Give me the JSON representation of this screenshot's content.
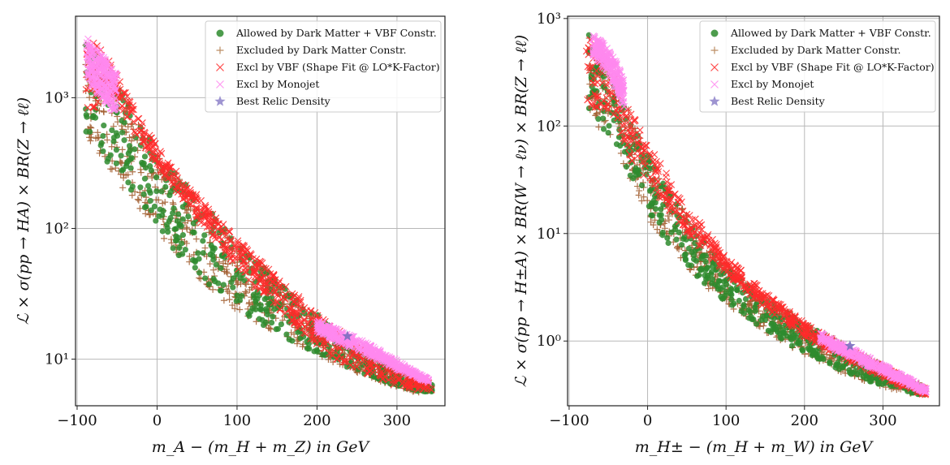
{
  "chart_data": [
    {
      "type": "scatter",
      "xlabel": "m_A − (m_H + m_Z) in GeV",
      "ylabel": "ℒ × σ(pp → HA) × BR(Z → ℓℓ)",
      "xlim": [
        -102,
        360
      ],
      "ylim": [
        4.4,
        4200
      ],
      "yscale": "log",
      "grid": true,
      "legend_position": "top-right",
      "x_ticks": [
        {
          "v": -100,
          "label": "−100"
        },
        {
          "v": 0,
          "label": "0"
        },
        {
          "v": 100,
          "label": "100"
        },
        {
          "v": 200,
          "label": "200"
        },
        {
          "v": 300,
          "label": "300"
        }
      ],
      "y_ticks": [
        {
          "v": 10,
          "label": "10¹"
        },
        {
          "v": 100,
          "label": "10²"
        },
        {
          "v": 1000,
          "label": "10³"
        }
      ],
      "legend": [
        {
          "label": "Allowed by Dark Matter + VBF Constr.",
          "marker": "circle",
          "color": "#2e8b2e"
        },
        {
          "label": "Excluded by Dark Matter Constr.",
          "marker": "plus",
          "color": "#b07a4a"
        },
        {
          "label": "Excl by VBF (Shape Fit @ LO*K-Factor)",
          "marker": "x",
          "color": "#ff2a2a"
        },
        {
          "label": "Excl by Monojet",
          "marker": "x",
          "color": "#ff88ee"
        },
        {
          "label": "Best Relic Density",
          "marker": "star",
          "color": "#9488cc"
        }
      ],
      "best_point": {
        "x": 238,
        "y": 15
      },
      "series": [
        {
          "name": "Excluded by Dark Matter Constr.",
          "marker": "plus",
          "color": "#a05a2c",
          "band": {
            "x": [
              -90,
              -70,
              -50,
              -25,
              0,
              25,
              50,
              75,
              100,
              125,
              150,
              175,
              200,
              225,
              250,
              275,
              300,
              325,
              345
            ],
            "lo": [
              480,
              350,
              230,
              150,
              98,
              62,
              42,
              30,
              23,
              19,
              16,
              13,
              11,
              9,
              7.8,
              6.8,
              6.1,
              5.5,
              5.4
            ],
            "hi": [
              3000,
              2000,
              1200,
              650,
              380,
              250,
              170,
              115,
              78,
              55,
              38,
              28,
              21,
              15,
              11.5,
              9.5,
              8.2,
              7.2,
              6.5
            ]
          }
        },
        {
          "name": "Allowed by Dark Matter + VBF Constr.",
          "marker": "circle",
          "color": "#2e8b2e",
          "band": {
            "x": [
              -90,
              -70,
              -50,
              -25,
              0,
              25,
              50,
              75,
              100,
              125,
              150,
              175,
              200,
              225,
              250,
              275,
              300,
              325,
              345
            ],
            "lo": [
              500,
              370,
              250,
              160,
              100,
              64,
              44,
              31,
              24,
              19,
              16,
              13,
              11,
              9.2,
              8,
              7,
              6.2,
              5.7,
              5.6
            ],
            "hi": [
              3200,
              2100,
              1300,
              700,
              400,
              260,
              175,
              118,
              80,
              56,
              40,
              29,
              22,
              16,
              12,
              9.8,
              8.4,
              7.3,
              6.4
            ]
          }
        },
        {
          "name": "Excl by VBF (Shape Fit @ LO*K-Factor)",
          "marker": "x",
          "color": "#ff2a2a",
          "band": {
            "x": [
              -90,
              -80,
              -70,
              -60,
              -50,
              -25,
              0,
              25,
              50,
              75,
              100,
              125,
              150,
              175,
              200,
              225,
              250,
              275,
              300,
              325,
              345
            ],
            "lo": [
              500,
              650,
              900,
              1000,
              900,
              500,
              300,
              190,
              120,
              80,
              50,
              34,
              24,
              17.5,
              13,
              10,
              8.3,
              7.2,
              6.3,
              5.8,
              5.8
            ],
            "hi": [
              2900,
              2700,
              2300,
              1900,
              1500,
              750,
              430,
              270,
              180,
              120,
              84,
              60,
              42,
              31,
              23,
              17,
              13,
              10.5,
              8.8,
              7.3,
              6.4
            ]
          }
        },
        {
          "name": "Excl by Monojet",
          "marker": "x",
          "color": "#ff88ee",
          "band": {
            "x": [
              -88,
              -80,
              -70,
              -60,
              -50,
              200,
              220,
              240,
              260,
              280,
              300,
              320,
              340
            ],
            "lo": [
              1400,
              1200,
              1000,
              850,
              700,
              16,
              14,
              12.5,
              11,
              9.5,
              8.3,
              7.4,
              6.6
            ],
            "hi": [
              2900,
              2600,
              2200,
              1800,
              1500,
              20,
              17.5,
              15.5,
              13.5,
              11.5,
              9.8,
              8.2,
              7
            ]
          }
        }
      ]
    },
    {
      "type": "scatter",
      "xlabel": "m_H± − (m_H + m_W) in GeV",
      "ylabel": "ℒ × σ(pp → H±A) × BR(W → ℓν) × BR(Z → ℓℓ)",
      "xlim": [
        -102,
        372
      ],
      "ylim": [
        0.25,
        1050
      ],
      "yscale": "log",
      "grid": true,
      "legend_position": "top-right",
      "x_ticks": [
        {
          "v": -100,
          "label": "−100"
        },
        {
          "v": 0,
          "label": "0"
        },
        {
          "v": 100,
          "label": "100"
        },
        {
          "v": 200,
          "label": "200"
        },
        {
          "v": 300,
          "label": "300"
        }
      ],
      "y_ticks": [
        {
          "v": 1,
          "label": "10⁰"
        },
        {
          "v": 10,
          "label": "10¹"
        },
        {
          "v": 100,
          "label": "10²"
        },
        {
          "v": 1000,
          "label": "10³"
        }
      ],
      "legend": [
        {
          "label": "Allowed by Dark Matter + VBF Constr.",
          "marker": "circle",
          "color": "#2e8b2e"
        },
        {
          "label": "Excluded by Dark Matter Constr.",
          "marker": "plus",
          "color": "#b07a4a"
        },
        {
          "label": "Excl by VBF (Shape Fit @ LO*K-Factor)",
          "marker": "x",
          "color": "#ff2a2a"
        },
        {
          "label": "Excl by Monojet",
          "marker": "x",
          "color": "#ff88ee"
        },
        {
          "label": "Best Relic Density",
          "marker": "star",
          "color": "#9488cc"
        }
      ],
      "best_point": {
        "x": 258,
        "y": 0.9
      },
      "series": [
        {
          "name": "Excluded by Dark Matter Constr.",
          "marker": "plus",
          "color": "#a05a2c",
          "band": {
            "x": [
              -75,
              -60,
              -40,
              -20,
              0,
              25,
              50,
              75,
              100,
              125,
              150,
              175,
              200,
              225,
              250,
              275,
              300,
              325,
              355
            ],
            "lo": [
              120,
              90,
              60,
              30,
              14,
              8,
              4.8,
              3.2,
              2.2,
              1.6,
              1.2,
              0.95,
              0.75,
              0.6,
              0.5,
              0.43,
              0.37,
              0.33,
              0.31
            ],
            "hi": [
              700,
              450,
              250,
              120,
              60,
              28,
              15,
              8.5,
              5.3,
              3.6,
              2.6,
              2,
              1.55,
              1.2,
              0.95,
              0.75,
              0.6,
              0.48,
              0.38
            ]
          }
        },
        {
          "name": "Allowed by Dark Matter + VBF Constr.",
          "marker": "circle",
          "color": "#2e8b2e",
          "band": {
            "x": [
              -75,
              -60,
              -40,
              -20,
              0,
              25,
              50,
              75,
              100,
              125,
              150,
              175,
              200,
              225,
              250,
              275,
              300,
              325,
              355
            ],
            "lo": [
              130,
              100,
              65,
              32,
              15,
              8.3,
              5,
              3.3,
              2.3,
              1.65,
              1.25,
              0.98,
              0.78,
              0.62,
              0.52,
              0.44,
              0.38,
              0.34,
              0.31
            ],
            "hi": [
              720,
              400,
              220,
              110,
              55,
              26,
              14,
              8,
              5,
              3.4,
              2.5,
              1.9,
              1.5,
              1.15,
              0.92,
              0.72,
              0.58,
              0.46,
              0.36
            ]
          }
        },
        {
          "name": "Excl by VBF (Shape Fit @ LO*K-Factor)",
          "marker": "x",
          "color": "#ff2a2a",
          "band": {
            "x": [
              -78,
              -70,
              -60,
              -50,
              -40,
              -30,
              0,
              50,
              100,
              150,
              200,
              250,
              300,
              355
            ],
            "lo": [
              120,
              140,
              150,
              140,
              120,
              60,
              30,
              10,
              4.2,
              2,
              1.1,
              0.68,
              0.45,
              0.31
            ],
            "hi": [
              720,
              600,
              500,
              420,
              330,
              180,
              70,
              18,
              6.2,
              2.8,
              1.5,
              0.9,
              0.58,
              0.36
            ]
          }
        },
        {
          "name": "Excl by Monojet",
          "marker": "x",
          "color": "#ff88ee",
          "band": {
            "x": [
              -70,
              -60,
              -50,
              -40,
              -30,
              220,
              240,
              260,
              280,
              300,
              320,
              340,
              355
            ],
            "lo": [
              450,
              380,
              300,
              220,
              150,
              1.0,
              0.82,
              0.7,
              0.58,
              0.5,
              0.43,
              0.37,
              0.33
            ],
            "hi": [
              700,
              620,
              520,
              400,
              260,
              1.2,
              1.0,
              0.85,
              0.72,
              0.6,
              0.5,
              0.42,
              0.36
            ]
          }
        }
      ]
    }
  ]
}
